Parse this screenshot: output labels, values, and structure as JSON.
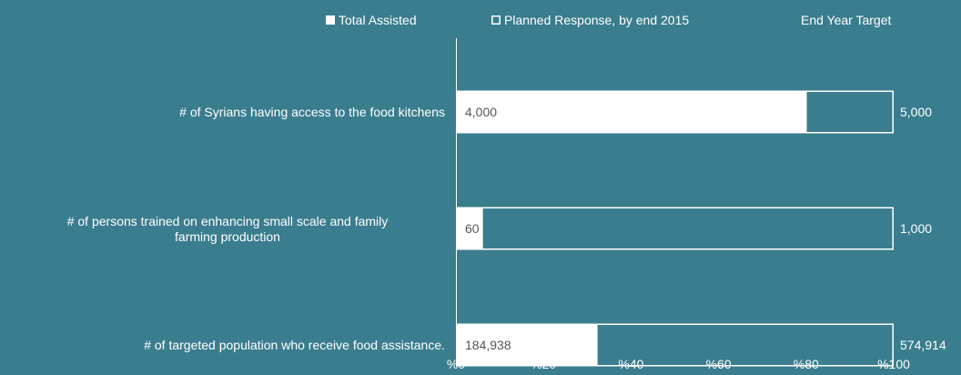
{
  "colors": {
    "background": "#3a7d8e",
    "bar_fill": "#ffffff",
    "target_fill": "#3a7d8e",
    "text_light": "#ffffff",
    "text_dark": "#555555"
  },
  "chart_data": {
    "type": "bar",
    "orientation": "horizontal",
    "stacked": true,
    "legend_position": "top",
    "legend": [
      "Total Assisted",
      "Planned Response, by end 2015",
      "End Year Target"
    ],
    "categories": [
      "# of Syrians having access to the food kitchens",
      "# of persons trained on enhancing small scale and family farming production",
      "# of targeted population who receive food assistance."
    ],
    "series": [
      {
        "name": "Total Assisted",
        "values": [
          80,
          6,
          32.2
        ],
        "labels": [
          "4,000",
          "60",
          "184,938"
        ]
      },
      {
        "name": "Planned Response, by end 2015",
        "values": [
          20,
          94,
          67.8
        ],
        "labels": [
          "5,000",
          "1,000",
          "574,914"
        ]
      }
    ],
    "x_ticks": [
      "%0",
      "%20",
      "%40",
      "%60",
      "%80",
      "%100"
    ],
    "xlim": [
      0,
      100
    ],
    "grid": false
  }
}
